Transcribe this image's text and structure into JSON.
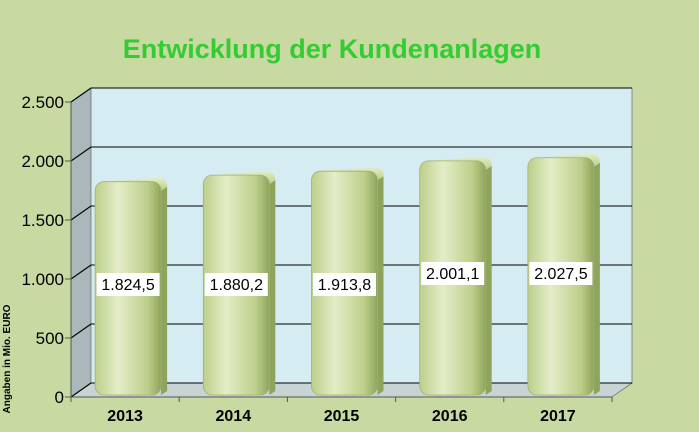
{
  "colors": {
    "background": "#c9d9a2",
    "plot_back_wall": "#d4ecf2",
    "plot_side_wall": "#aab8bc",
    "plot_floor": "#c8d4d4",
    "title": "#33cc33",
    "bar_fill": "#bccf8a",
    "bar_highlight": "#e4edc8",
    "bar_shadow": "#8ea45c",
    "label_box": "#ffffff",
    "axis_text": "#000000"
  },
  "chart_data": {
    "type": "bar",
    "title": "Entwicklung der Kundenanlagen",
    "ylabel": "Angaben in Mio. EURO",
    "xlabel": "",
    "categories": [
      "2013",
      "2014",
      "2015",
      "2016",
      "2017"
    ],
    "values": [
      1824.5,
      1880.2,
      1913.8,
      2001.1,
      2027.5
    ],
    "data_labels": [
      "1.824,5",
      "1.880,2",
      "1.913,8",
      "2.001,1",
      "2.027,5"
    ],
    "ylim": [
      0,
      2500
    ],
    "yticks": [
      0,
      500,
      1000,
      1500,
      2000,
      2500
    ],
    "ytick_labels": [
      "0",
      "500",
      "1.000",
      "1.500",
      "2.000",
      "2.500"
    ],
    "grid": true,
    "legend": "none",
    "style": "3d-rounded-bars"
  }
}
